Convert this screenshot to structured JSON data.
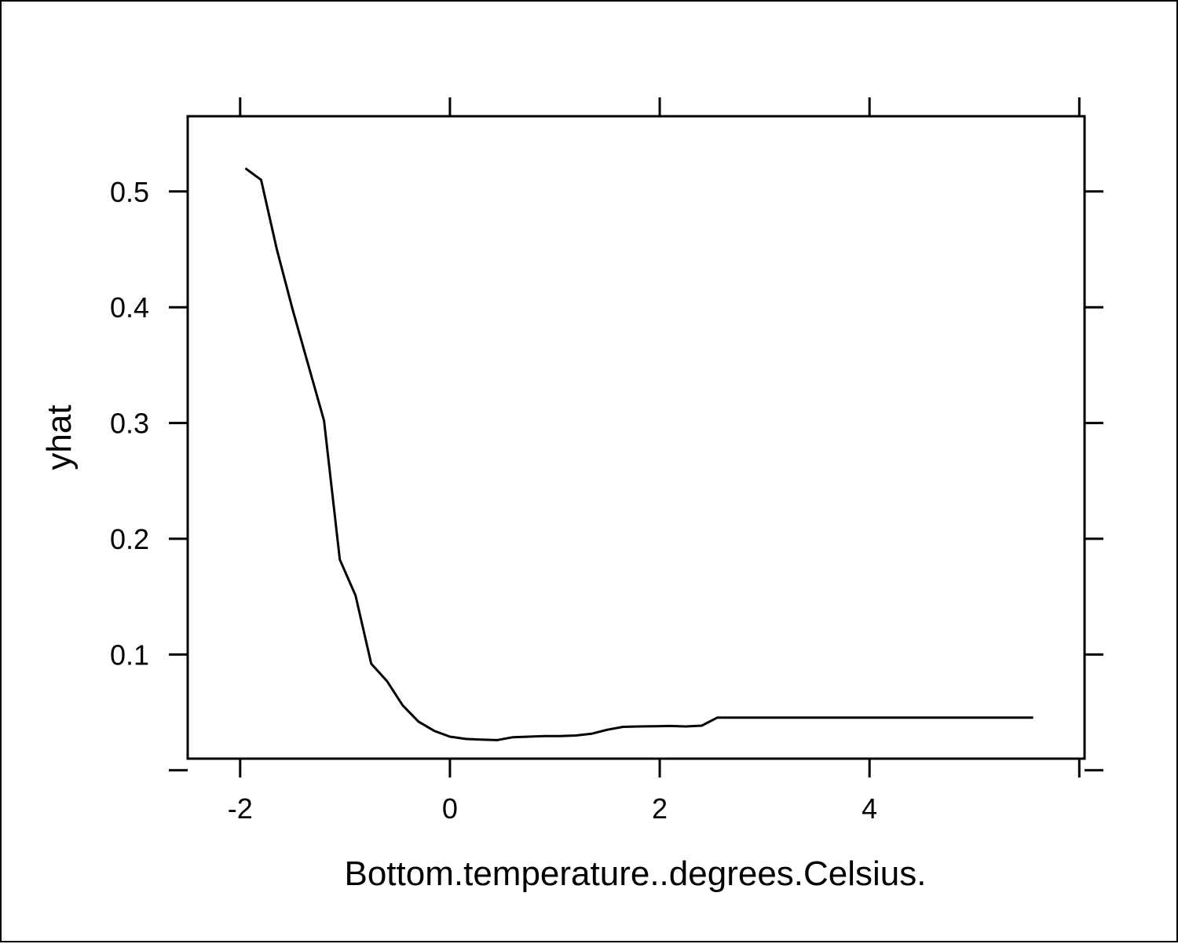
{
  "chart_data": {
    "type": "line",
    "title": "",
    "xlabel": "Bottom.temperature..degrees.Celsius.",
    "ylabel": "yhat",
    "xlim": [
      -2.5,
      6.05
    ],
    "ylim": [
      0.01,
      0.565
    ],
    "x_ticks": [
      -2,
      0,
      2,
      4,
      6
    ],
    "x_tick_labels": [
      "-2",
      "0",
      "2",
      "4",
      ""
    ],
    "y_ticks": [
      0.0,
      0.1,
      0.2,
      0.3,
      0.4,
      0.5
    ],
    "y_tick_labels": [
      "",
      "0.1",
      "0.2",
      "0.3",
      "0.4",
      "0.5"
    ],
    "grid": false,
    "line_color": "#000000",
    "series": [
      {
        "x": [
          -1.95,
          -1.8,
          -1.65,
          -1.5,
          -1.35,
          -1.2,
          -1.05,
          -0.9,
          -0.75,
          -0.6,
          -0.45,
          -0.3,
          -0.15,
          0.0,
          0.15,
          0.3,
          0.45,
          0.6,
          0.75,
          0.9,
          1.05,
          1.2,
          1.35,
          1.5,
          1.65,
          1.8,
          1.95,
          2.1,
          2.25,
          2.4,
          2.55,
          2.7,
          3.0,
          3.5,
          4.0,
          4.5,
          5.0,
          5.56
        ],
        "y": [
          0.52,
          0.51,
          0.45,
          0.398,
          0.35,
          0.302,
          0.182,
          0.151,
          0.092,
          0.077,
          0.056,
          0.042,
          0.034,
          0.029,
          0.027,
          0.0265,
          0.026,
          0.0285,
          0.029,
          0.0295,
          0.0295,
          0.03,
          0.0315,
          0.035,
          0.0375,
          0.0378,
          0.038,
          0.0382,
          0.0378,
          0.0385,
          0.0455,
          0.0455,
          0.0455,
          0.0455,
          0.0455,
          0.0455,
          0.0455,
          0.0455
        ]
      }
    ]
  }
}
